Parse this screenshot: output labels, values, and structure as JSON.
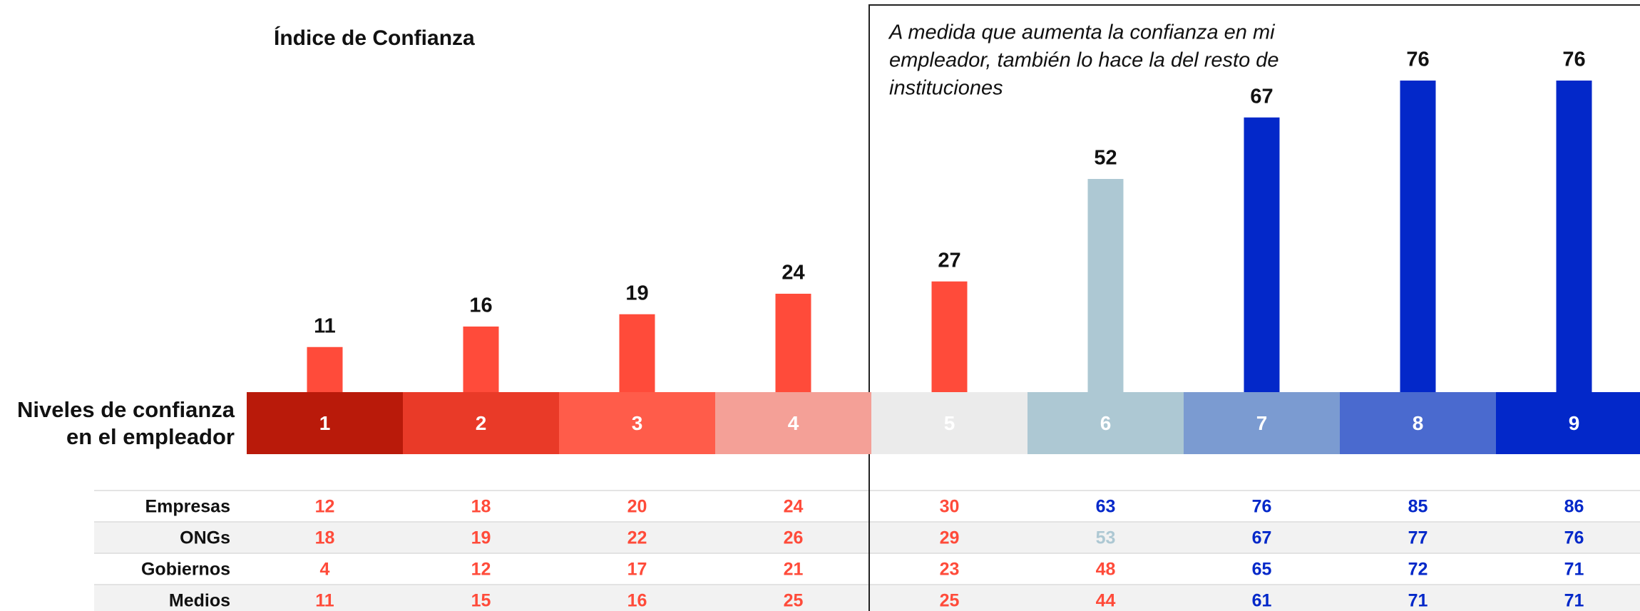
{
  "chart_data": {
    "type": "bar",
    "title": "Índice de Confianza",
    "annotation": [
      "A medida que aumenta la confianza en mi",
      "empleador, también lo hace la del resto de",
      "instituciones"
    ],
    "axis_label": [
      "Niveles de confianza",
      "en el empleador"
    ],
    "categories": [
      "1",
      "2",
      "3",
      "4",
      "5",
      "6",
      "7",
      "8",
      "9"
    ],
    "category_colors": [
      "#b91a0a",
      "#e93a28",
      "#ff5c4a",
      "#f4a097",
      "#ebebeb",
      "#adc8d3",
      "#7b9bd1",
      "#4a6acf",
      "#0328c9"
    ],
    "values": [
      11,
      16,
      19,
      24,
      27,
      52,
      67,
      76,
      76
    ],
    "colors": [
      "#ff4b3a",
      "#ff4b3a",
      "#ff4b3a",
      "#ff4b3a",
      "#ff4b3a",
      "#adc8d3",
      "#0328c9",
      "#0328c9",
      "#0328c9"
    ]
  },
  "table": {
    "rows": [
      {
        "label": "Empresas",
        "values": [
          12,
          18,
          20,
          24,
          30,
          63,
          76,
          85,
          86
        ],
        "colors": [
          "#ff4b3a",
          "#ff4b3a",
          "#ff4b3a",
          "#ff4b3a",
          "#ff4b3a",
          "#0328c9",
          "#0328c9",
          "#0328c9",
          "#0328c9"
        ]
      },
      {
        "label": "ONGs",
        "values": [
          18,
          19,
          22,
          26,
          29,
          53,
          67,
          77,
          76
        ],
        "colors": [
          "#ff4b3a",
          "#ff4b3a",
          "#ff4b3a",
          "#ff4b3a",
          "#ff4b3a",
          "#adc8d3",
          "#0328c9",
          "#0328c9",
          "#0328c9"
        ]
      },
      {
        "label": "Gobiernos",
        "values": [
          4,
          12,
          17,
          21,
          23,
          48,
          65,
          72,
          71
        ],
        "colors": [
          "#ff4b3a",
          "#ff4b3a",
          "#ff4b3a",
          "#ff4b3a",
          "#ff4b3a",
          "#ff4b3a",
          "#0328c9",
          "#0328c9",
          "#0328c9"
        ]
      },
      {
        "label": "Medios",
        "values": [
          11,
          15,
          16,
          25,
          25,
          44,
          61,
          71,
          71
        ],
        "colors": [
          "#ff4b3a",
          "#ff4b3a",
          "#ff4b3a",
          "#ff4b3a",
          "#ff4b3a",
          "#ff4b3a",
          "#0328c9",
          "#0328c9",
          "#0328c9"
        ]
      }
    ]
  }
}
